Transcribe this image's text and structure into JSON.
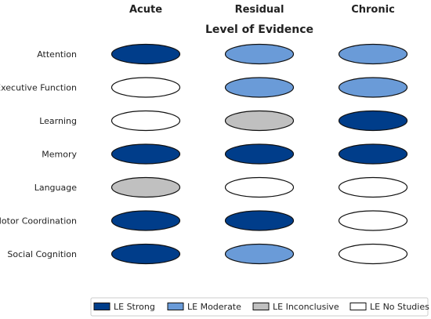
{
  "chart_data": {
    "type": "table",
    "title": "Level of Evidence",
    "columns": [
      "Acute",
      "Residual",
      "Chronic"
    ],
    "rows": [
      "Attention",
      "Executive Function",
      "Learning",
      "Memory",
      "Language",
      "Motor Coordination",
      "Social Cognition"
    ],
    "values": [
      [
        "LE Strong",
        "LE Moderate",
        "LE Moderate"
      ],
      [
        "LE No Studies",
        "LE Moderate",
        "LE Moderate"
      ],
      [
        "LE No Studies",
        "LE Inconclusive",
        "LE Strong"
      ],
      [
        "LE Strong",
        "LE Strong",
        "LE Strong"
      ],
      [
        "LE Inconclusive",
        "LE No Studies",
        "LE No Studies"
      ],
      [
        "LE Strong",
        "LE Strong",
        "LE No Studies"
      ],
      [
        "LE Strong",
        "LE Moderate",
        "LE No Studies"
      ]
    ],
    "legend": [
      {
        "label": "LE Strong",
        "color": "#003d8a"
      },
      {
        "label": "LE Moderate",
        "color": "#6a9bd8"
      },
      {
        "label": "LE Inconclusive",
        "color": "#c0c0c0"
      },
      {
        "label": "LE No Studies",
        "color": "#ffffff"
      }
    ],
    "legend_position": "bottom-right"
  }
}
